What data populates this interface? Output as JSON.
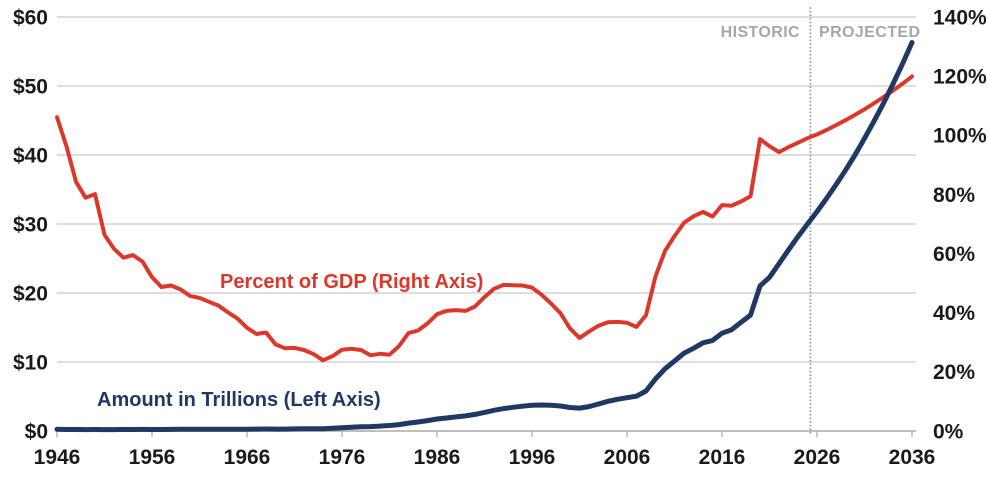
{
  "page": {
    "background": "#ffffff"
  },
  "chart_data": {
    "type": "line",
    "title": "",
    "grid": {
      "on": true,
      "color": "#C9C9C9",
      "axis_color": "#A8A8A8",
      "tick_color": "#ADADAD"
    },
    "legend_position": "inline-annotations",
    "x_axis": {
      "min": 1946,
      "max": 2036,
      "tick_years": [
        1946,
        1956,
        1966,
        1976,
        1986,
        1996,
        2006,
        2016,
        2026,
        2036
      ],
      "tick_labels": [
        "1946",
        "1956",
        "1966",
        "1976",
        "1986",
        "1996",
        "2006",
        "2016",
        "2026",
        "2036"
      ]
    },
    "left_axis": {
      "min": 0,
      "max": 60,
      "tick_values": [
        0,
        10,
        20,
        30,
        40,
        50,
        60
      ],
      "tick_labels": [
        "$0",
        "$10",
        "$20",
        "$30",
        "$40",
        "$50",
        "$60"
      ]
    },
    "right_axis": {
      "min": 0,
      "max": 140,
      "tick_values": [
        0,
        20,
        40,
        60,
        80,
        100,
        120,
        140
      ],
      "tick_labels": [
        "0%",
        "20%",
        "40%",
        "60%",
        "80%",
        "100%",
        "120%",
        "140%"
      ]
    },
    "years": [
      1946,
      1947,
      1948,
      1949,
      1950,
      1951,
      1952,
      1953,
      1954,
      1955,
      1956,
      1957,
      1958,
      1959,
      1960,
      1961,
      1962,
      1963,
      1964,
      1965,
      1966,
      1967,
      1968,
      1969,
      1970,
      1971,
      1972,
      1973,
      1974,
      1975,
      1976,
      1977,
      1978,
      1979,
      1980,
      1981,
      1982,
      1983,
      1984,
      1985,
      1986,
      1987,
      1988,
      1989,
      1990,
      1991,
      1992,
      1993,
      1994,
      1995,
      1996,
      1997,
      1998,
      1999,
      2000,
      2001,
      2002,
      2003,
      2004,
      2005,
      2006,
      2007,
      2008,
      2009,
      2010,
      2011,
      2012,
      2013,
      2014,
      2015,
      2016,
      2017,
      2018,
      2019,
      2020,
      2021,
      2022,
      2023,
      2024,
      2025,
      2026,
      2027,
      2028,
      2029,
      2030,
      2031,
      2032,
      2033,
      2034,
      2035,
      2036
    ],
    "series": [
      {
        "name": "Amount in Trillions (Left Axis)",
        "axis": "left",
        "unit": "trillions USD",
        "color": "#1F3864",
        "values": [
          0.24,
          0.22,
          0.22,
          0.21,
          0.22,
          0.21,
          0.21,
          0.22,
          0.22,
          0.23,
          0.22,
          0.22,
          0.23,
          0.24,
          0.24,
          0.24,
          0.25,
          0.25,
          0.26,
          0.26,
          0.26,
          0.27,
          0.29,
          0.28,
          0.28,
          0.3,
          0.32,
          0.34,
          0.34,
          0.4,
          0.48,
          0.55,
          0.61,
          0.64,
          0.71,
          0.79,
          0.93,
          1.14,
          1.31,
          1.51,
          1.74,
          1.89,
          2.05,
          2.19,
          2.41,
          2.69,
          3.0,
          3.25,
          3.43,
          3.6,
          3.73,
          3.77,
          3.72,
          3.63,
          3.41,
          3.32,
          3.54,
          3.91,
          4.3,
          4.59,
          4.83,
          5.04,
          5.8,
          7.55,
          9.02,
          10.13,
          11.28,
          11.98,
          12.78,
          13.12,
          14.17,
          14.67,
          15.75,
          16.8,
          21.02,
          22.28,
          24.25,
          26.24,
          28.18,
          30.0,
          31.8,
          33.7,
          35.7,
          37.8,
          40.0,
          42.4,
          44.9,
          47.5,
          50.3,
          53.2,
          56.3
        ]
      },
      {
        "name": "Percent of GDP (Right Axis)",
        "axis": "right",
        "unit": "percent of GDP",
        "color": "#DB382B",
        "values": [
          106.1,
          96.2,
          84.3,
          78.9,
          80.1,
          66.3,
          61.6,
          58.6,
          59.5,
          57.3,
          52.0,
          48.7,
          49.2,
          47.9,
          45.7,
          45.0,
          43.7,
          42.4,
          40.1,
          38.0,
          34.9,
          32.8,
          33.3,
          29.3,
          28.0,
          28.1,
          27.4,
          26.0,
          23.9,
          25.3,
          27.5,
          27.8,
          27.4,
          25.6,
          26.1,
          25.8,
          28.7,
          33.1,
          34.0,
          36.4,
          39.5,
          40.6,
          40.9,
          40.6,
          42.1,
          45.3,
          48.1,
          49.4,
          49.3,
          49.2,
          48.5,
          46.1,
          43.1,
          39.8,
          34.7,
          31.5,
          33.6,
          35.6,
          36.8,
          36.9,
          36.6,
          35.2,
          39.2,
          52.3,
          60.9,
          65.9,
          70.4,
          72.6,
          74.1,
          72.5,
          76.4,
          76.2,
          77.6,
          79.4,
          98.7,
          96.3,
          94.3,
          96.0,
          97.5,
          99.0,
          100.3,
          101.8,
          103.4,
          105.1,
          106.9,
          108.8,
          110.8,
          112.9,
          115.1,
          117.4,
          119.9
        ]
      }
    ],
    "divider": {
      "year": 2025.3,
      "historic_label": "HISTORIC",
      "projected_label": "PROJECTED",
      "color": "#9E9E9E",
      "label_color": "#A6A6A6"
    }
  }
}
